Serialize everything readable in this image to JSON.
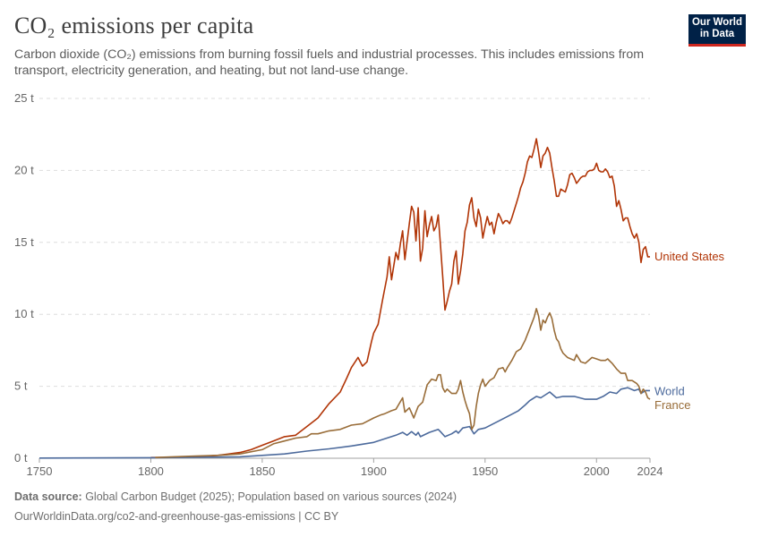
{
  "title": "CO₂ emissions per capita",
  "subtitle": "Carbon dioxide (CO₂) emissions from burning fossil fuels and industrial processes. This includes emissions from transport, electricity generation, and heating, but not land-use change.",
  "logo": {
    "line1": "Our World",
    "line2": "in Data"
  },
  "footer": {
    "source_label": "Data source:",
    "source_text": " Global Carbon Budget (2025); Population based on various sources (2024)",
    "url_text": "OurWorldinData.org/co2-and-greenhouse-gas-emissions | CC BY"
  },
  "chart_data": {
    "type": "line",
    "xlim": [
      1750,
      2024
    ],
    "ylim": [
      0,
      25
    ],
    "x_ticks": [
      1750,
      1800,
      1850,
      1900,
      1950,
      2000,
      2024
    ],
    "y_ticks": [
      0,
      5,
      10,
      15,
      20,
      25
    ],
    "y_tick_labels": [
      "0 t",
      "5 t",
      "10 t",
      "15 t",
      "20 t",
      "25 t"
    ],
    "grid": "horizontal dashed",
    "series": [
      {
        "name": "United States",
        "color": "#b13507",
        "points": [
          [
            1800,
            0.05
          ],
          [
            1810,
            0.06
          ],
          [
            1820,
            0.1
          ],
          [
            1830,
            0.2
          ],
          [
            1840,
            0.4
          ],
          [
            1845,
            0.6
          ],
          [
            1850,
            0.9
          ],
          [
            1855,
            1.2
          ],
          [
            1860,
            1.5
          ],
          [
            1865,
            1.6
          ],
          [
            1870,
            2.2
          ],
          [
            1875,
            2.8
          ],
          [
            1880,
            3.8
          ],
          [
            1885,
            4.6
          ],
          [
            1888,
            5.6
          ],
          [
            1890,
            6.3
          ],
          [
            1893,
            7.0
          ],
          [
            1895,
            6.4
          ],
          [
            1897,
            6.7
          ],
          [
            1899,
            8.1
          ],
          [
            1900,
            8.7
          ],
          [
            1902,
            9.3
          ],
          [
            1904,
            11.0
          ],
          [
            1906,
            12.6
          ],
          [
            1907,
            14.0
          ],
          [
            1908,
            12.4
          ],
          [
            1910,
            14.3
          ],
          [
            1911,
            13.8
          ],
          [
            1912,
            14.9
          ],
          [
            1913,
            15.8
          ],
          [
            1914,
            13.8
          ],
          [
            1916,
            16.3
          ],
          [
            1917,
            17.5
          ],
          [
            1918,
            17.1
          ],
          [
            1919,
            15.1
          ],
          [
            1920,
            17.4
          ],
          [
            1921,
            13.7
          ],
          [
            1922,
            14.6
          ],
          [
            1923,
            17.2
          ],
          [
            1924,
            15.4
          ],
          [
            1925,
            16.2
          ],
          [
            1926,
            16.8
          ],
          [
            1927,
            15.8
          ],
          [
            1928,
            16.1
          ],
          [
            1929,
            16.9
          ],
          [
            1930,
            14.8
          ],
          [
            1931,
            12.6
          ],
          [
            1932,
            10.3
          ],
          [
            1933,
            10.9
          ],
          [
            1934,
            11.6
          ],
          [
            1935,
            12.1
          ],
          [
            1936,
            13.7
          ],
          [
            1937,
            14.4
          ],
          [
            1938,
            12.1
          ],
          [
            1939,
            13.0
          ],
          [
            1940,
            14.2
          ],
          [
            1941,
            15.8
          ],
          [
            1942,
            16.4
          ],
          [
            1943,
            17.6
          ],
          [
            1944,
            18.1
          ],
          [
            1945,
            16.7
          ],
          [
            1946,
            16.1
          ],
          [
            1947,
            17.3
          ],
          [
            1948,
            16.7
          ],
          [
            1949,
            15.3
          ],
          [
            1950,
            16.1
          ],
          [
            1951,
            16.8
          ],
          [
            1952,
            16.2
          ],
          [
            1953,
            16.4
          ],
          [
            1954,
            15.6
          ],
          [
            1955,
            16.4
          ],
          [
            1956,
            17.0
          ],
          [
            1957,
            16.7
          ],
          [
            1958,
            16.3
          ],
          [
            1959,
            16.5
          ],
          [
            1960,
            16.5
          ],
          [
            1961,
            16.3
          ],
          [
            1962,
            16.7
          ],
          [
            1963,
            17.2
          ],
          [
            1964,
            17.7
          ],
          [
            1965,
            18.2
          ],
          [
            1966,
            18.8
          ],
          [
            1967,
            19.2
          ],
          [
            1968,
            19.8
          ],
          [
            1969,
            20.6
          ],
          [
            1970,
            21.0
          ],
          [
            1971,
            20.9
          ],
          [
            1972,
            21.5
          ],
          [
            1973,
            22.2
          ],
          [
            1974,
            21.3
          ],
          [
            1975,
            20.2
          ],
          [
            1976,
            21.0
          ],
          [
            1977,
            21.2
          ],
          [
            1978,
            21.6
          ],
          [
            1979,
            21.2
          ],
          [
            1980,
            20.2
          ],
          [
            1981,
            19.3
          ],
          [
            1982,
            18.2
          ],
          [
            1983,
            18.2
          ],
          [
            1984,
            18.7
          ],
          [
            1985,
            18.6
          ],
          [
            1986,
            18.5
          ],
          [
            1987,
            19.0
          ],
          [
            1988,
            19.7
          ],
          [
            1989,
            19.8
          ],
          [
            1990,
            19.5
          ],
          [
            1991,
            19.1
          ],
          [
            1992,
            19.3
          ],
          [
            1993,
            19.5
          ],
          [
            1994,
            19.6
          ],
          [
            1995,
            19.6
          ],
          [
            1996,
            19.9
          ],
          [
            1997,
            20.0
          ],
          [
            1998,
            20.0
          ],
          [
            1999,
            20.1
          ],
          [
            2000,
            20.5
          ],
          [
            2001,
            20.0
          ],
          [
            2002,
            19.9
          ],
          [
            2003,
            19.9
          ],
          [
            2004,
            20.1
          ],
          [
            2005,
            19.9
          ],
          [
            2006,
            19.5
          ],
          [
            2007,
            19.6
          ],
          [
            2008,
            18.9
          ],
          [
            2009,
            17.5
          ],
          [
            2010,
            17.9
          ],
          [
            2011,
            17.3
          ],
          [
            2012,
            16.5
          ],
          [
            2013,
            16.7
          ],
          [
            2014,
            16.7
          ],
          [
            2015,
            16.1
          ],
          [
            2016,
            15.6
          ],
          [
            2017,
            15.3
          ],
          [
            2018,
            15.6
          ],
          [
            2019,
            15.0
          ],
          [
            2020,
            13.6
          ],
          [
            2021,
            14.5
          ],
          [
            2022,
            14.7
          ],
          [
            2023,
            14.0
          ],
          [
            2024,
            14.0
          ]
        ]
      },
      {
        "name": "World",
        "color": "#4c6a9c",
        "points": [
          [
            1750,
            0.01
          ],
          [
            1800,
            0.04
          ],
          [
            1820,
            0.06
          ],
          [
            1840,
            0.1
          ],
          [
            1850,
            0.2
          ],
          [
            1860,
            0.3
          ],
          [
            1870,
            0.5
          ],
          [
            1880,
            0.65
          ],
          [
            1890,
            0.85
          ],
          [
            1900,
            1.1
          ],
          [
            1905,
            1.35
          ],
          [
            1910,
            1.6
          ],
          [
            1913,
            1.8
          ],
          [
            1915,
            1.6
          ],
          [
            1917,
            1.85
          ],
          [
            1919,
            1.6
          ],
          [
            1920,
            1.8
          ],
          [
            1921,
            1.5
          ],
          [
            1925,
            1.8
          ],
          [
            1929,
            2.0
          ],
          [
            1930,
            1.85
          ],
          [
            1932,
            1.5
          ],
          [
            1935,
            1.7
          ],
          [
            1937,
            1.9
          ],
          [
            1938,
            1.75
          ],
          [
            1940,
            2.1
          ],
          [
            1943,
            2.2
          ],
          [
            1945,
            1.7
          ],
          [
            1947,
            2.0
          ],
          [
            1950,
            2.1
          ],
          [
            1955,
            2.5
          ],
          [
            1960,
            2.9
          ],
          [
            1965,
            3.3
          ],
          [
            1968,
            3.7
          ],
          [
            1970,
            4.0
          ],
          [
            1973,
            4.3
          ],
          [
            1975,
            4.2
          ],
          [
            1979,
            4.6
          ],
          [
            1982,
            4.2
          ],
          [
            1985,
            4.3
          ],
          [
            1990,
            4.3
          ],
          [
            1995,
            4.1
          ],
          [
            2000,
            4.1
          ],
          [
            2003,
            4.3
          ],
          [
            2006,
            4.6
          ],
          [
            2009,
            4.5
          ],
          [
            2011,
            4.8
          ],
          [
            2014,
            4.9
          ],
          [
            2017,
            4.7
          ],
          [
            2019,
            4.8
          ],
          [
            2020,
            4.5
          ],
          [
            2022,
            4.7
          ],
          [
            2024,
            4.7
          ]
        ]
      },
      {
        "name": "France",
        "color": "#996d39",
        "points": [
          [
            1802,
            0.05
          ],
          [
            1810,
            0.1
          ],
          [
            1820,
            0.15
          ],
          [
            1830,
            0.2
          ],
          [
            1840,
            0.3
          ],
          [
            1850,
            0.6
          ],
          [
            1855,
            1.0
          ],
          [
            1860,
            1.2
          ],
          [
            1865,
            1.4
          ],
          [
            1870,
            1.5
          ],
          [
            1872,
            1.7
          ],
          [
            1875,
            1.7
          ],
          [
            1880,
            1.9
          ],
          [
            1885,
            2.0
          ],
          [
            1890,
            2.3
          ],
          [
            1895,
            2.4
          ],
          [
            1900,
            2.8
          ],
          [
            1903,
            3.0
          ],
          [
            1905,
            3.1
          ],
          [
            1908,
            3.3
          ],
          [
            1910,
            3.4
          ],
          [
            1913,
            4.2
          ],
          [
            1914,
            3.2
          ],
          [
            1916,
            3.5
          ],
          [
            1918,
            2.8
          ],
          [
            1919,
            3.2
          ],
          [
            1920,
            3.6
          ],
          [
            1922,
            3.9
          ],
          [
            1924,
            5.1
          ],
          [
            1926,
            5.5
          ],
          [
            1928,
            5.4
          ],
          [
            1929,
            5.8
          ],
          [
            1930,
            5.8
          ],
          [
            1931,
            4.9
          ],
          [
            1932,
            4.6
          ],
          [
            1933,
            4.8
          ],
          [
            1935,
            4.5
          ],
          [
            1937,
            4.5
          ],
          [
            1938,
            4.8
          ],
          [
            1939,
            5.4
          ],
          [
            1940,
            4.6
          ],
          [
            1941,
            4.0
          ],
          [
            1942,
            3.5
          ],
          [
            1943,
            3.1
          ],
          [
            1944,
            2.0
          ],
          [
            1945,
            2.3
          ],
          [
            1946,
            3.6
          ],
          [
            1947,
            4.5
          ],
          [
            1948,
            5.1
          ],
          [
            1949,
            5.5
          ],
          [
            1950,
            5.0
          ],
          [
            1952,
            5.4
          ],
          [
            1954,
            5.6
          ],
          [
            1956,
            6.2
          ],
          [
            1958,
            6.3
          ],
          [
            1959,
            6.0
          ],
          [
            1960,
            6.3
          ],
          [
            1962,
            6.8
          ],
          [
            1964,
            7.4
          ],
          [
            1966,
            7.6
          ],
          [
            1968,
            8.2
          ],
          [
            1970,
            9.0
          ],
          [
            1972,
            9.8
          ],
          [
            1973,
            10.4
          ],
          [
            1974,
            9.9
          ],
          [
            1975,
            8.9
          ],
          [
            1976,
            9.6
          ],
          [
            1977,
            9.4
          ],
          [
            1978,
            9.8
          ],
          [
            1979,
            10.1
          ],
          [
            1980,
            9.7
          ],
          [
            1981,
            8.9
          ],
          [
            1982,
            8.3
          ],
          [
            1983,
            8.1
          ],
          [
            1984,
            7.6
          ],
          [
            1985,
            7.3
          ],
          [
            1987,
            7.0
          ],
          [
            1990,
            6.8
          ],
          [
            1991,
            7.2
          ],
          [
            1993,
            6.7
          ],
          [
            1995,
            6.6
          ],
          [
            1998,
            7.0
          ],
          [
            2000,
            6.9
          ],
          [
            2002,
            6.8
          ],
          [
            2004,
            6.8
          ],
          [
            2005,
            6.9
          ],
          [
            2007,
            6.6
          ],
          [
            2009,
            6.2
          ],
          [
            2011,
            5.9
          ],
          [
            2013,
            5.9
          ],
          [
            2014,
            5.4
          ],
          [
            2016,
            5.4
          ],
          [
            2018,
            5.2
          ],
          [
            2019,
            5.0
          ],
          [
            2020,
            4.5
          ],
          [
            2021,
            4.8
          ],
          [
            2022,
            4.6
          ],
          [
            2023,
            4.2
          ],
          [
            2024,
            4.1
          ]
        ]
      }
    ]
  }
}
